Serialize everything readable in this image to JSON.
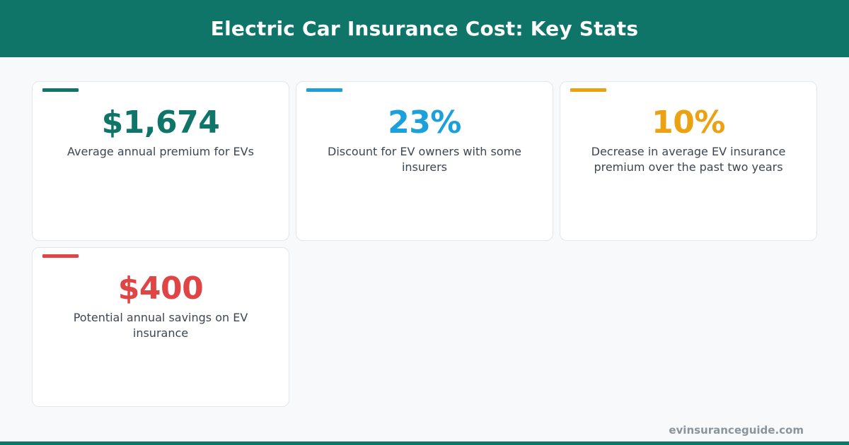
{
  "header": {
    "title": "Electric Car Insurance Cost: Key Stats"
  },
  "colors": {
    "brand": "#0f7568",
    "blue": "#1ba0dc",
    "orange": "#eca210",
    "red": "#e04444"
  },
  "stats": [
    {
      "value": "$1,674",
      "label": "Average annual premium for EVs",
      "color": "#0f7568"
    },
    {
      "value": "23%",
      "label": "Discount for EV owners with some insurers",
      "color": "#1ba0dc"
    },
    {
      "value": "10%",
      "label": "Decrease in average EV insurance premium over the past two years",
      "color": "#eca210"
    },
    {
      "value": "$400",
      "label": "Potential annual savings on EV insurance",
      "color": "#e04444"
    }
  ],
  "footer": {
    "site": "evinsuranceguide.com"
  }
}
